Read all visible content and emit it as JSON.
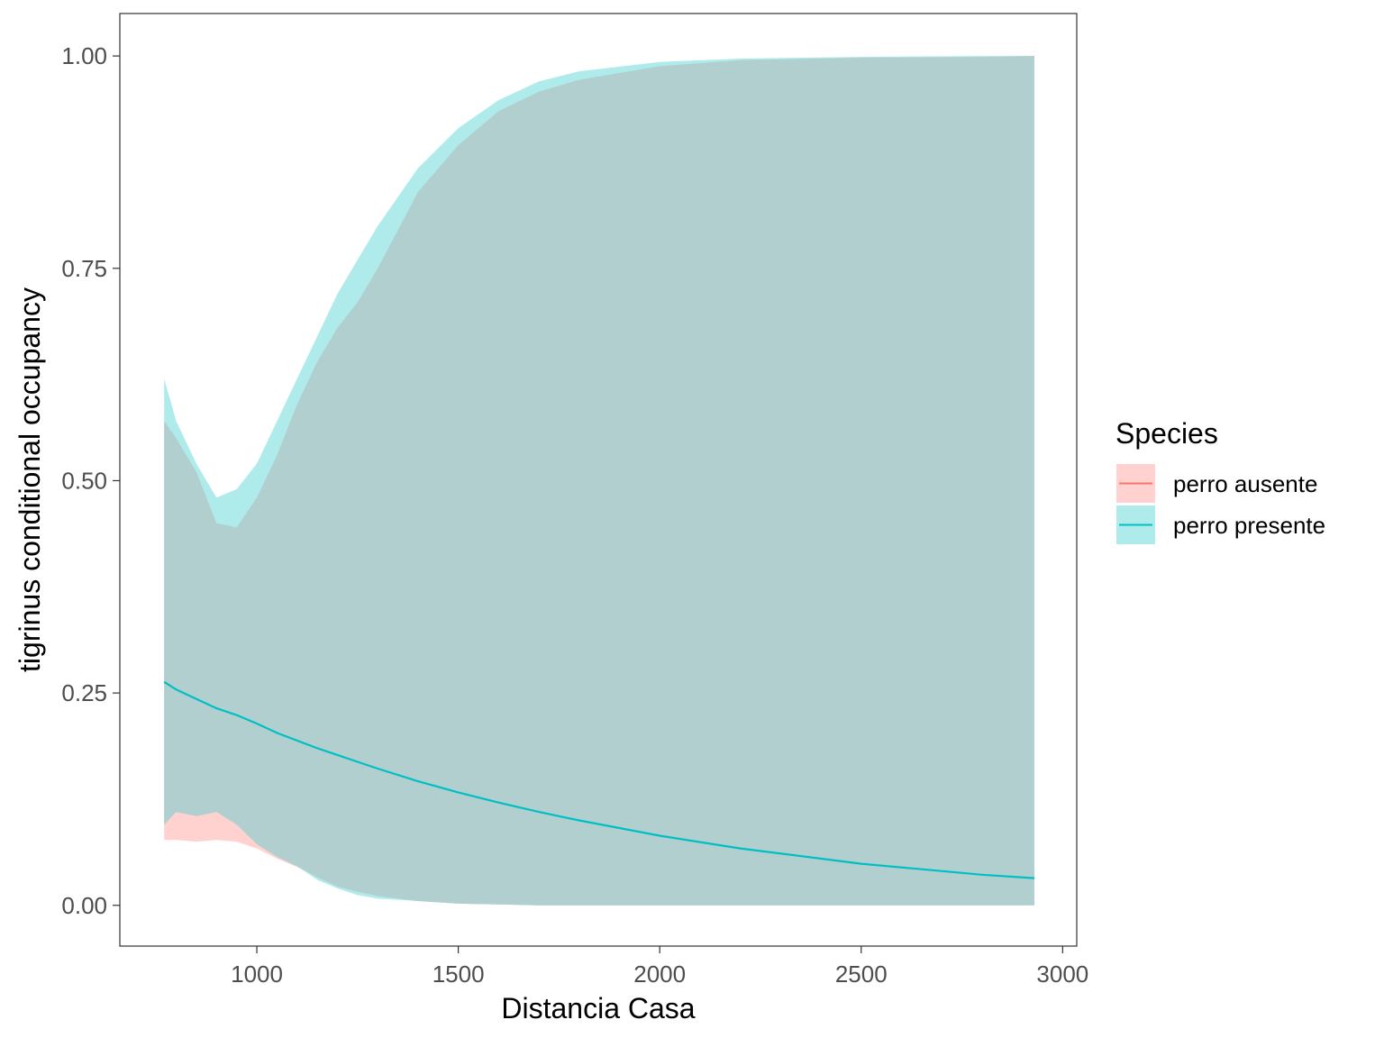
{
  "chart_data": {
    "type": "line",
    "title": "",
    "xlabel": "Distancia Casa",
    "ylabel": "tigrinus conditional occupancy",
    "xlim": [
      660,
      3035
    ],
    "ylim": [
      -0.048,
      1.05
    ],
    "x_ticks": [
      1000,
      1500,
      2000,
      2500,
      3000
    ],
    "x_tick_labels": [
      "1000",
      "1500",
      "2000",
      "2500",
      "3000"
    ],
    "y_ticks": [
      0,
      0.25,
      0.5,
      0.75,
      1.0
    ],
    "y_tick_labels": [
      "0.00",
      "0.25",
      "0.50",
      "0.75",
      "1.00"
    ],
    "grid": false,
    "legend": {
      "title": "Species",
      "position": "right",
      "entries": [
        "perro ausente",
        "perro presente"
      ]
    },
    "colors": {
      "perro ausente": "#F8766D",
      "perro presente": "#00BFC4",
      "ribbon_ausente": "#FFD2CF",
      "ribbon_presente": "#B0EBEC",
      "overlap": "#B2CFCF"
    },
    "series": [
      {
        "name": "perro ausente",
        "x": [
          770,
          800,
          850,
          900,
          950,
          1000,
          1050,
          1100,
          1150,
          1200,
          1250,
          1300,
          1400,
          1500,
          1600,
          1700,
          1800,
          2000,
          2200,
          2500,
          2800,
          2930
        ],
        "lower": [
          0.077,
          0.077,
          0.075,
          0.077,
          0.075,
          0.067,
          0.055,
          0.045,
          0.033,
          0.022,
          0.016,
          0.011,
          0.005,
          0.002,
          0.001,
          0.0,
          0.0,
          0.0,
          0.0,
          0.0,
          0.0,
          0.0
        ],
        "upper": [
          0.57,
          0.55,
          0.51,
          0.45,
          0.445,
          0.48,
          0.53,
          0.59,
          0.64,
          0.68,
          0.71,
          0.75,
          0.84,
          0.895,
          0.935,
          0.958,
          0.972,
          0.988,
          0.995,
          0.998,
          0.999,
          1.0
        ]
      },
      {
        "name": "perro presente",
        "x": [
          770,
          800,
          850,
          900,
          950,
          1000,
          1050,
          1100,
          1150,
          1200,
          1250,
          1300,
          1400,
          1500,
          1600,
          1700,
          1800,
          2000,
          2200,
          2500,
          2800,
          2930
        ],
        "y": [
          0.263,
          0.254,
          0.243,
          0.232,
          0.224,
          0.214,
          0.203,
          0.194,
          0.185,
          0.177,
          0.169,
          0.161,
          0.146,
          0.133,
          0.121,
          0.11,
          0.1,
          0.082,
          0.067,
          0.049,
          0.036,
          0.032
        ],
        "lower": [
          0.095,
          0.11,
          0.105,
          0.11,
          0.095,
          0.072,
          0.057,
          0.046,
          0.03,
          0.02,
          0.012,
          0.008,
          0.005,
          0.002,
          0.001,
          0.0,
          0.0,
          0.0,
          0.0,
          0.0,
          0.0,
          0.0
        ],
        "upper": [
          0.62,
          0.57,
          0.52,
          0.48,
          0.49,
          0.52,
          0.57,
          0.62,
          0.67,
          0.72,
          0.76,
          0.8,
          0.868,
          0.915,
          0.948,
          0.97,
          0.982,
          0.993,
          0.997,
          0.999,
          1.0,
          1.0
        ]
      }
    ]
  }
}
